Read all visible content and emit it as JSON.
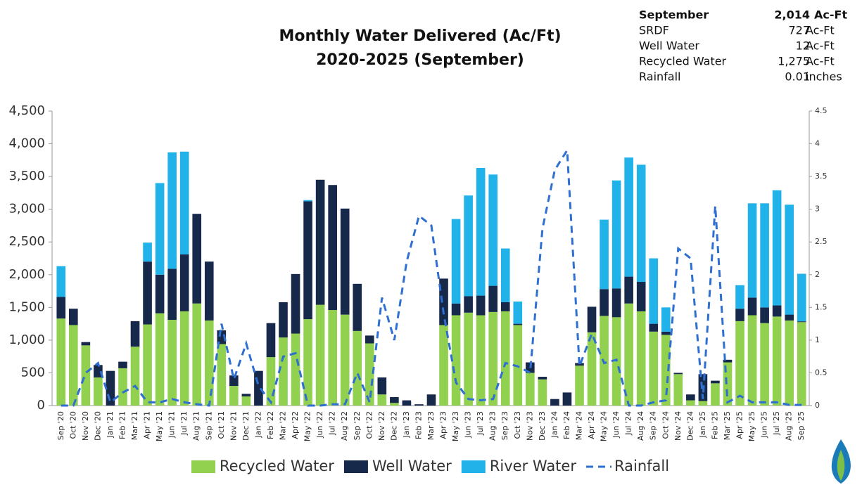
{
  "chart_data": {
    "type": "bar",
    "stacked": true,
    "title": "Monthly Water Delivered (Ac/Ft)",
    "subtitle": "2020-2025 (September)",
    "categories": [
      "Sep '20",
      "Oct '20",
      "Nov '20",
      "Dec '20",
      "Jan '21",
      "Feb '21",
      "Mar '21",
      "Apr '21",
      "May '21",
      "Jun '21",
      "Jul '21",
      "Aug '21",
      "Sep '21",
      "Oct '21",
      "Nov '21",
      "Dec '21",
      "Jan '22",
      "Feb '22",
      "Mar '22",
      "Apr '22",
      "May '22",
      "Jun '22",
      "Jul '22",
      "Aug '22",
      "Sep '22",
      "Oct '22",
      "Nov '22",
      "Dec '22",
      "Jan '23",
      "Feb '23",
      "Mar '23",
      "Apr '23",
      "May '23",
      "Jun '23",
      "Jul '23",
      "Aug '23",
      "Sep '23",
      "Oct '23",
      "Nov '23",
      "Dec '23",
      "Jan '24",
      "Feb '24",
      "Mar '24",
      "Apr '24",
      "May '24",
      "Jun '24",
      "Jul '24",
      "Aug '24",
      "Sep '24",
      "Oct '24",
      "Nov '24",
      "Dec '24",
      "Jan '25",
      "Feb '25",
      "Mar '25",
      "Apr '25",
      "May '25",
      "Jun '25",
      "Jul '25",
      "Aug '25",
      "Sep '25"
    ],
    "series": [
      {
        "name": "Recycled Water",
        "type": "bar",
        "color": "#92d050",
        "values": [
          1330,
          1230,
          920,
          430,
          0,
          570,
          900,
          1240,
          1410,
          1310,
          1440,
          1560,
          1300,
          940,
          300,
          140,
          0,
          740,
          1040,
          1100,
          1320,
          1540,
          1460,
          1390,
          1140,
          950,
          170,
          40,
          0,
          0,
          0,
          1230,
          1380,
          1420,
          1380,
          1430,
          1440,
          1230,
          500,
          400,
          0,
          0,
          610,
          1120,
          1370,
          1350,
          1560,
          1440,
          1130,
          1080,
          480,
          80,
          70,
          340,
          660,
          1290,
          1380,
          1260,
          1360,
          1300,
          1275
        ]
      },
      {
        "name": "Well Water",
        "type": "bar",
        "color": "#17294a",
        "values": [
          330,
          250,
          50,
          190,
          530,
          100,
          390,
          960,
          590,
          780,
          870,
          1370,
          900,
          210,
          160,
          40,
          530,
          520,
          540,
          910,
          1800,
          1910,
          1910,
          1620,
          720,
          120,
          260,
          90,
          80,
          20,
          170,
          710,
          180,
          250,
          300,
          400,
          140,
          20,
          160,
          40,
          100,
          200,
          40,
          390,
          410,
          440,
          410,
          450,
          120,
          50,
          20,
          90,
          410,
          40,
          40,
          190,
          270,
          240,
          170,
          90,
          12
        ]
      },
      {
        "name": "River Water",
        "type": "bar",
        "color": "#21b2ea",
        "values": [
          470,
          0,
          0,
          0,
          0,
          0,
          0,
          290,
          1400,
          1780,
          1570,
          0,
          0,
          0,
          0,
          0,
          0,
          0,
          0,
          0,
          20,
          0,
          0,
          0,
          0,
          0,
          0,
          0,
          0,
          0,
          0,
          0,
          1290,
          1540,
          1950,
          1700,
          820,
          340,
          0,
          0,
          0,
          0,
          0,
          0,
          1060,
          1650,
          1820,
          1790,
          1000,
          370,
          0,
          0,
          0,
          0,
          0,
          360,
          1440,
          1590,
          1760,
          1680,
          727
        ]
      },
      {
        "name": "Rainfall",
        "type": "line",
        "axis": "y2",
        "color": "#2e6fd1",
        "values": [
          0,
          0,
          0.5,
          0.65,
          0.05,
          0.2,
          0.3,
          0.05,
          0.05,
          0.1,
          0.05,
          0.02,
          0,
          1.25,
          0.4,
          0.95,
          0.3,
          0.05,
          0.75,
          0.8,
          0,
          0,
          0.02,
          0.02,
          0.5,
          0.05,
          1.65,
          1,
          2.2,
          2.9,
          2.75,
          1.4,
          0.35,
          0.1,
          0.08,
          0.1,
          0.65,
          0.6,
          0.5,
          2.7,
          3.6,
          3.9,
          0.6,
          1.1,
          0.65,
          0.7,
          0,
          0,
          0.05,
          0.08,
          2.4,
          2.25,
          0.1,
          3.05,
          0.05,
          0.15,
          0.05,
          0.05,
          0.05,
          0.01,
          0.01
        ]
      }
    ],
    "ylim": [
      0,
      4500
    ],
    "yticks": [
      0,
      500,
      {
        "value": 1000,
        "label": "1,000"
      },
      {
        "value": 1500,
        "label": "1,500"
      },
      {
        "value": 2000,
        "label": "2,000"
      },
      {
        "value": 2500,
        "label": "2,500"
      },
      {
        "value": 3000,
        "label": "3,000"
      },
      {
        "value": 3500,
        "label": "3,500"
      },
      {
        "value": 4000,
        "label": "4,000"
      },
      {
        "value": 4500,
        "label": "4,500"
      }
    ],
    "y2lim": [
      0,
      4.5
    ],
    "y2ticks": [
      0,
      0.5,
      1,
      1.5,
      2,
      2.5,
      3,
      3.5,
      4,
      4.5
    ],
    "legend": "bottom"
  },
  "summary": {
    "header": [
      "September",
      "2,014",
      "Ac-Ft"
    ],
    "rows": [
      [
        "SRDF",
        "727",
        "Ac-Ft"
      ],
      [
        "Well Water",
        "12",
        "Ac-Ft"
      ],
      [
        "Recycled Water",
        "1,275",
        "Ac-Ft"
      ],
      [
        "Rainfall",
        "0.01",
        "inches"
      ]
    ]
  }
}
